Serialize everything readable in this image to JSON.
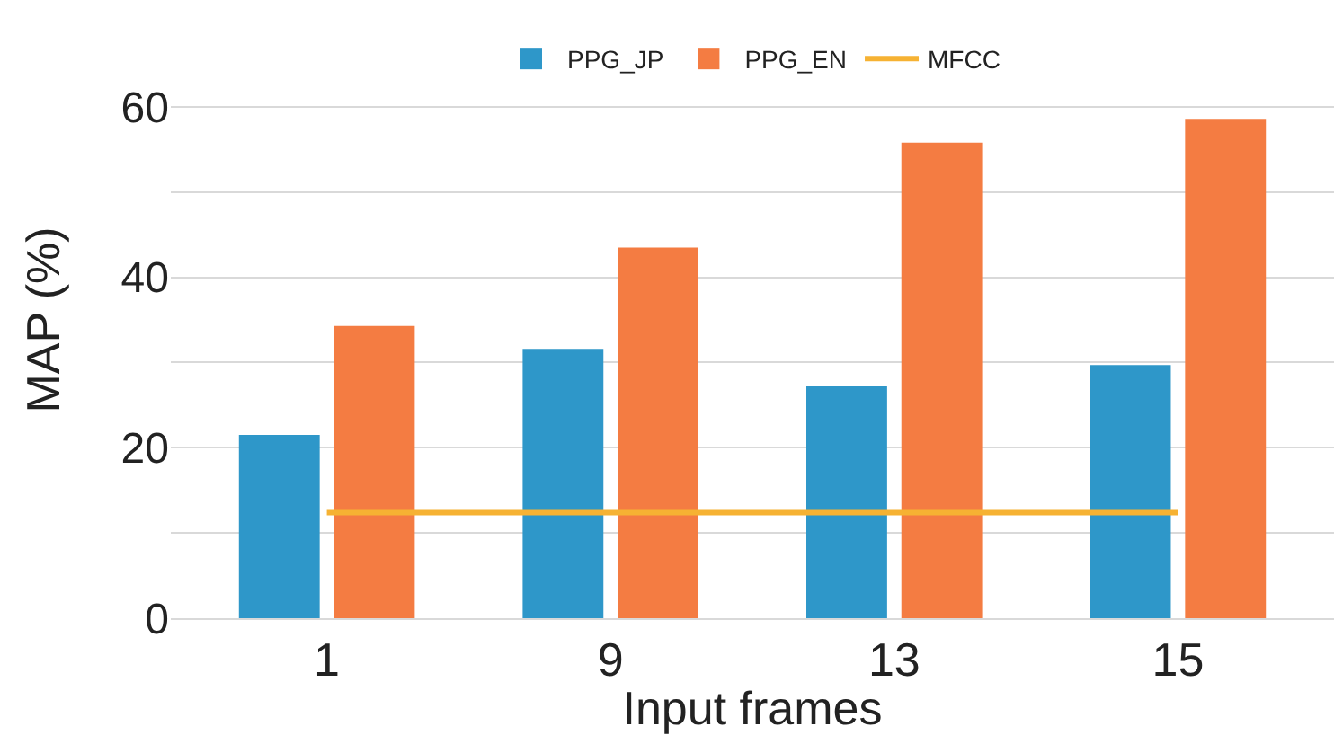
{
  "chart_data": {
    "type": "bar",
    "xlabel": "Input frames",
    "ylabel": "MAP (%)",
    "categories": [
      "1",
      "9",
      "13",
      "15"
    ],
    "series": [
      {
        "name": "PPG_JP",
        "color": "#2e97c9",
        "values": [
          21.5,
          31.6,
          27.2,
          29.7
        ]
      },
      {
        "name": "PPG_EN",
        "color": "#f47c42",
        "values": [
          34.3,
          43.5,
          55.8,
          58.6
        ]
      },
      {
        "name": "MFCC",
        "type": "line",
        "color": "#f6b233",
        "values": [
          12.4,
          12.4,
          12.4,
          12.4
        ]
      }
    ],
    "ylim": [
      0,
      70
    ],
    "yticks": [
      0,
      {
        "value": 10,
        "label": null
      },
      20,
      {
        "value": 30,
        "label": null
      },
      40,
      {
        "value": 50,
        "label": null
      },
      60,
      {
        "value": 70,
        "label": null
      }
    ],
    "grid": "y",
    "legend": "top",
    "marker": "none",
    "line_style": "solid"
  }
}
